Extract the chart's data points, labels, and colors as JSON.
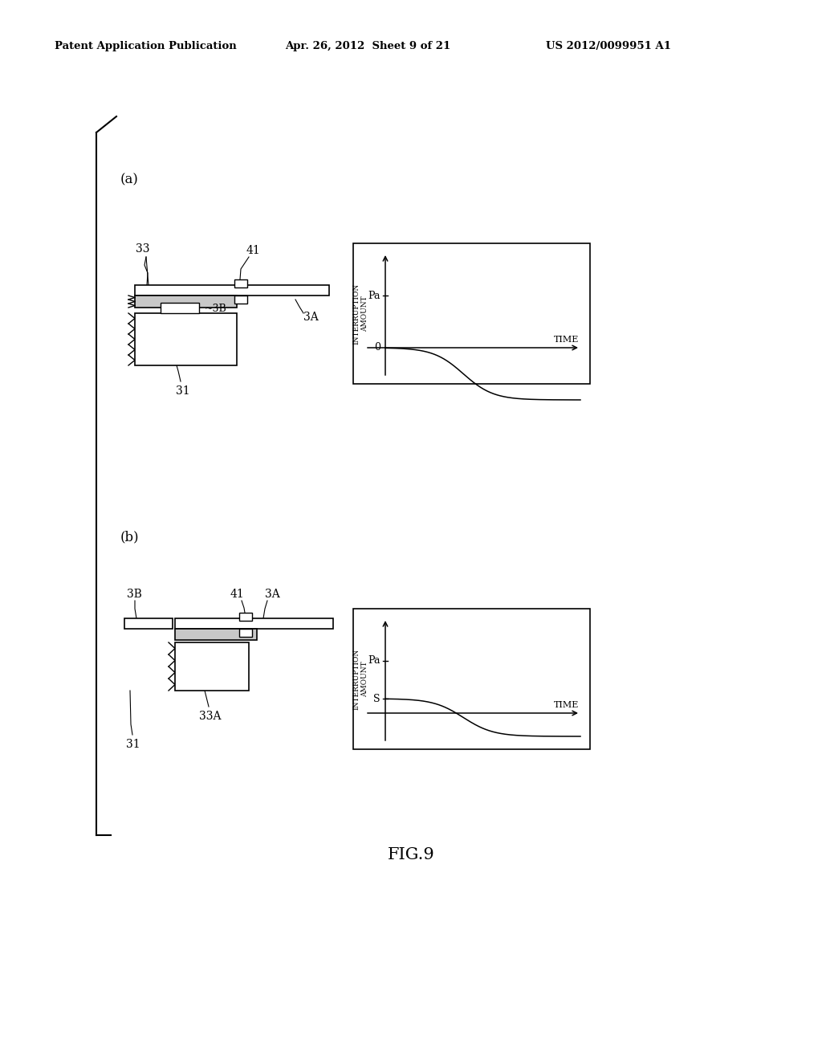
{
  "bg_color": "#ffffff",
  "header_left": "Patent Application Publication",
  "header_mid": "Apr. 26, 2012  Sheet 9 of 21",
  "header_right": "US 2012/0099951 A1",
  "fig_label": "FIG.9",
  "panel_a_label": "(a)",
  "panel_b_label": "(b)",
  "label_33": "33",
  "label_41": "41",
  "label_3B": "3B",
  "label_3A": "3A",
  "label_31": "31",
  "label_33A": "33A",
  "label_Pa_a": "Pa",
  "label_0_a": "0",
  "label_TIME_a": "TIME",
  "label_INT_AMT": "INTERRUPTION\nAMOUNT",
  "label_Pa_b": "Pa",
  "label_S_b": "S",
  "label_TIME_b": "TIME",
  "label_INT_AMT_b": "INTERRUPTION\nAMOUNT",
  "gray_fill": "#c8c8c8",
  "white_fill": "#ffffff",
  "line_color": "#000000"
}
